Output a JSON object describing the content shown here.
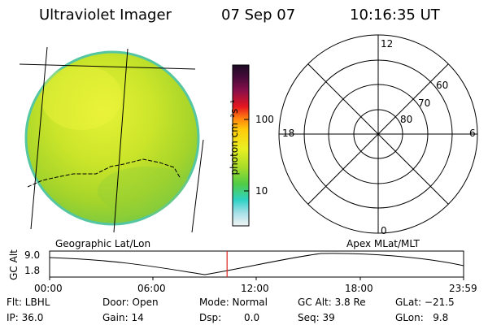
{
  "header": {
    "title": "Ultraviolet Imager",
    "date": "07 Sep 07",
    "time": "10:16:35 UT"
  },
  "colorbar": {
    "label": "photon cm⁻²s⁻¹",
    "ticks": [
      "100",
      "10"
    ]
  },
  "image_panel": {
    "caption": "Geographic Lat/Lon"
  },
  "polar_plot": {
    "caption": "Apex MLat/MLT",
    "mlt_labels": [
      "12",
      "18",
      "6",
      "0"
    ],
    "lat_labels": [
      "60",
      "70",
      "80"
    ]
  },
  "altitude_strip": {
    "ylabel": "GC Alt",
    "yticks": [
      "9.0",
      "1.8"
    ],
    "xticks": [
      "00:00",
      "06:00",
      "12:00",
      "18:00",
      "23:59"
    ],
    "current_time_marker_hours": 10.28
  },
  "status": {
    "filter": "Flt: LBHL",
    "ip": "IP: 36.0",
    "door": "Door: Open",
    "gain": "Gain: 14",
    "mode": "Mode: Normal",
    "dsp_label": "Dsp:",
    "dsp_value": "0.0",
    "gc_alt": "GC Alt: 3.8 Re",
    "seq": "Seq: 39",
    "glat": "GLat: −21.5",
    "glon": "GLon:   9.8"
  }
}
